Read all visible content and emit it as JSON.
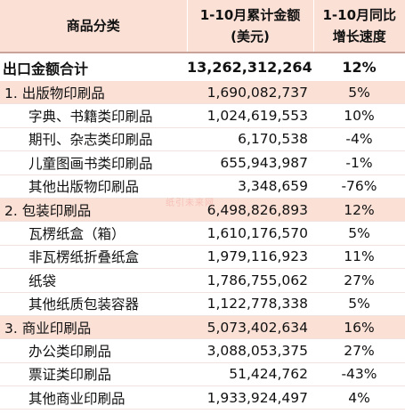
{
  "header": {
    "col1": "商品分类",
    "col2_line1": "1-10月累计金额",
    "col2_line2": "(美元)",
    "col3_line1": "1-10月同比",
    "col3_line2": "增长速度"
  },
  "total": {
    "name": "出口金额合计",
    "value": "13,262,312,264",
    "growth": "12%"
  },
  "rows": [
    {
      "type": "cat",
      "name": "1. 出版物印刷品",
      "value": "1,690,082,737",
      "growth": "5%"
    },
    {
      "type": "sub",
      "name": "字典、书籍类印刷品",
      "value": "1,024,619,553",
      "growth": "10%"
    },
    {
      "type": "sub",
      "name": "期刊、杂志类印刷品",
      "value": "6,170,538",
      "growth": "-4%"
    },
    {
      "type": "sub",
      "name": "儿童图画书类印刷品",
      "value": "655,943,987",
      "growth": "-1%"
    },
    {
      "type": "sub",
      "name": "其他出版物印刷品",
      "value": "3,348,659",
      "growth": "-76%"
    },
    {
      "type": "cat",
      "name": "2. 包装印刷品",
      "value": "6,498,826,893",
      "growth": "12%"
    },
    {
      "type": "sub",
      "name": "瓦楞纸盒（箱）",
      "value": "1,610,176,570",
      "growth": "5%"
    },
    {
      "type": "sub",
      "name": "非瓦楞纸折叠纸盒",
      "value": "1,979,116,923",
      "growth": "11%"
    },
    {
      "type": "sub",
      "name": "纸袋",
      "value": "1,786,755,062",
      "growth": "27%"
    },
    {
      "type": "sub",
      "name": "其他纸质包装容器",
      "value": "1,122,778,338",
      "growth": "5%"
    },
    {
      "type": "cat",
      "name": "3. 商业印刷品",
      "value": "5,073,402,634",
      "growth": "16%"
    },
    {
      "type": "sub",
      "name": "办公类印刷品",
      "value": "3,088,053,375",
      "growth": "27%"
    },
    {
      "type": "sub",
      "name": "票证类印刷品",
      "value": "51,424,762",
      "growth": "-43%"
    },
    {
      "type": "sub",
      "name": "其他商业印刷品",
      "value": "1,933,924,497",
      "growth": "4%"
    }
  ],
  "watermark": "纸引未来网"
}
